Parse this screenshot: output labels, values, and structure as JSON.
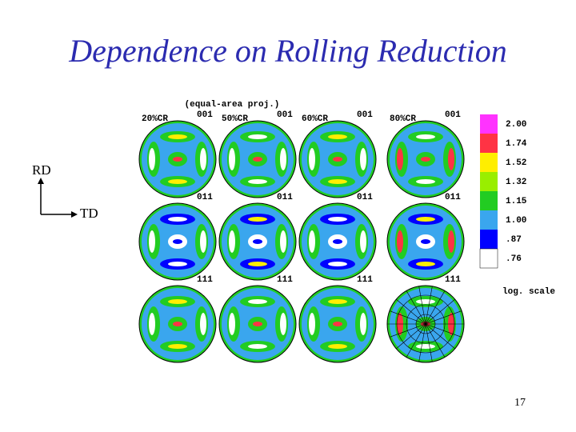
{
  "slide": {
    "title": "Dependence on Rolling Reduction",
    "axes": {
      "rd": "RD",
      "td": "TD"
    },
    "figure": {
      "projection": "(equal-area proj.)",
      "columns": [
        "20%CR",
        "50%CR",
        "60%CR",
        "80%CR"
      ],
      "rows": [
        "001",
        "011",
        "111"
      ],
      "scale": {
        "levels": [
          {
            "label": "2.00",
            "color": "#ff33ff"
          },
          {
            "label": "1.74",
            "color": "#ff3344"
          },
          {
            "label": "1.52",
            "color": "#ffee00"
          },
          {
            "label": "1.32",
            "color": "#99ee00"
          },
          {
            "label": "1.15",
            "color": "#22cc22"
          },
          {
            "label": "1.00",
            "color": "#3aa6ee"
          },
          {
            "label": ".87",
            "color": "#0000ff"
          },
          {
            "label": ".76",
            "color": "#ffffff"
          }
        ],
        "note": "log. scale"
      }
    },
    "page_number": "17"
  }
}
